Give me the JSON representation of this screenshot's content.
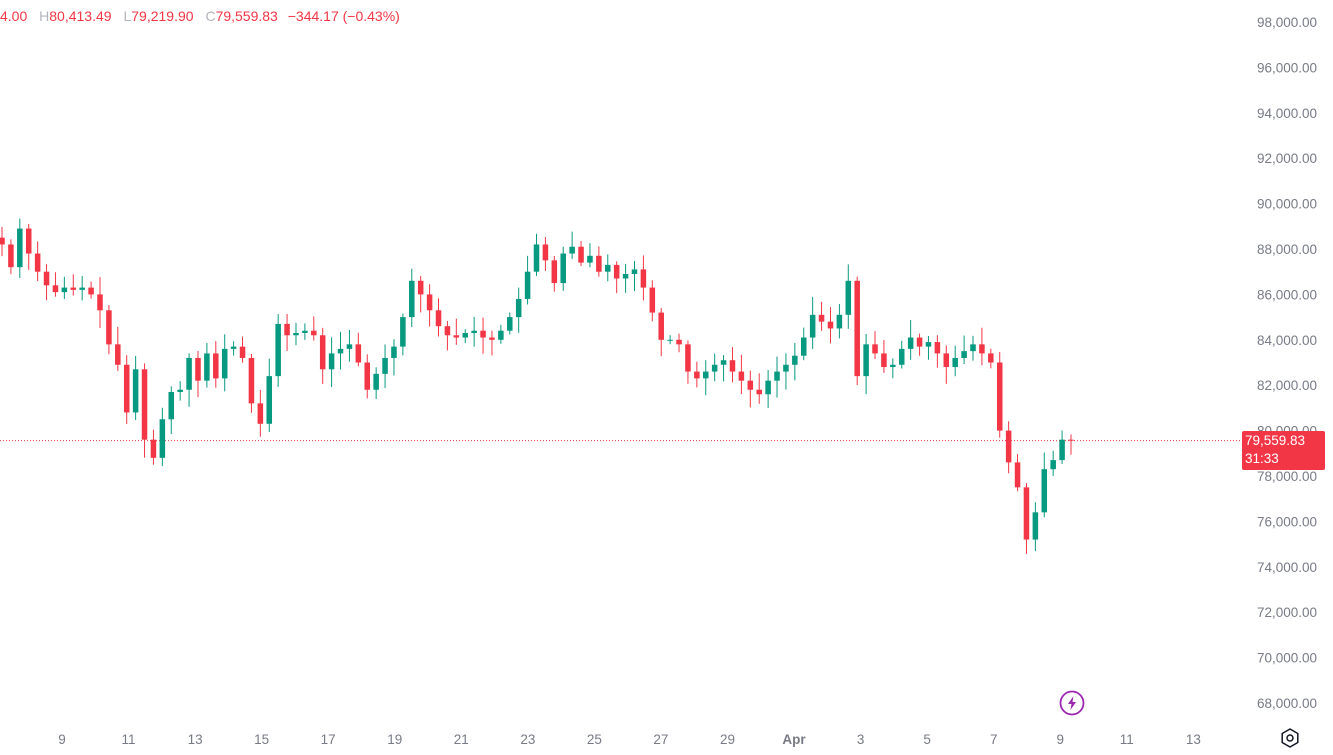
{
  "ohlc": {
    "open_partial": "4.00",
    "high_label": "H",
    "high": "80,413.49",
    "low_label": "L",
    "low": "79,219.90",
    "close_label": "C",
    "close": "79,559.83",
    "change": "−344.17 (−0.43%)"
  },
  "price_tag": {
    "price": "79,559.83",
    "countdown": "31:33"
  },
  "colors": {
    "up": "#089981",
    "down": "#f23645",
    "axis_text": "#787b86",
    "last_line": "#f23645"
  },
  "icons": [
    "flash-icon",
    "settings-icon"
  ],
  "chart_data": {
    "type": "candlestick",
    "title": "",
    "y_axis": {
      "min": 67000,
      "max": 98800,
      "ticks": [
        98000,
        96000,
        94000,
        92000,
        90000,
        88000,
        86000,
        84000,
        82000,
        80000,
        78000,
        76000,
        74000,
        72000,
        70000,
        68000
      ],
      "tick_labels": [
        "98,000.00",
        "96,000.00",
        "94,000.00",
        "92,000.00",
        "90,000.00",
        "88,000.00",
        "86,000.00",
        "84,000.00",
        "82,000.00",
        "80,000.00",
        "78,000.00",
        "76,000.00",
        "74,000.00",
        "72,000.00",
        "70,000.00",
        "68,000.00"
      ]
    },
    "x_axis": {
      "tick_labels": [
        "9",
        "11",
        "13",
        "15",
        "17",
        "19",
        "21",
        "23",
        "25",
        "27",
        "29",
        "Apr",
        "3",
        "5",
        "7",
        "9",
        "11",
        "13"
      ],
      "tick_bold": [
        false,
        false,
        false,
        false,
        false,
        false,
        false,
        false,
        false,
        false,
        false,
        true,
        false,
        false,
        false,
        false,
        false,
        false
      ]
    },
    "last_price": 79559.83,
    "close_path": [
      88200,
      87200,
      88900,
      87800,
      87000,
      86400,
      86100,
      86300,
      86200,
      86300,
      86000,
      85300,
      83800,
      82900,
      80800,
      82700,
      79600,
      78800,
      80500,
      81700,
      81800,
      83200,
      82200,
      83400,
      82300,
      83600,
      83700,
      83200,
      81200,
      80300,
      82400,
      84700,
      84200,
      84300,
      84400,
      84200,
      82700,
      83400,
      83600,
      83800,
      83000,
      81800,
      82500,
      83200,
      83700,
      85000,
      86600,
      86000,
      85300,
      84600,
      84200,
      84100,
      84300,
      84400,
      84100,
      84000,
      84400,
      85000,
      85800,
      87000,
      88200,
      87500,
      86500,
      87800,
      88100,
      87400,
      87700,
      87000,
      87300,
      86700,
      86900,
      87100,
      86300,
      85200,
      84000,
      84000,
      83800,
      82600,
      82300,
      82600,
      82900,
      83100,
      82600,
      82200,
      81800,
      81600,
      82200,
      82600,
      82900,
      83300,
      84100,
      85100,
      84800,
      84500,
      85100,
      86600,
      82400,
      83800,
      83400,
      82800,
      82900,
      83600,
      84100,
      83700,
      83900,
      83400,
      82800,
      83200,
      83500,
      83800,
      83400,
      83000,
      80000,
      78600,
      77500,
      75200,
      76400,
      78300,
      78700,
      79600,
      79560
    ]
  }
}
